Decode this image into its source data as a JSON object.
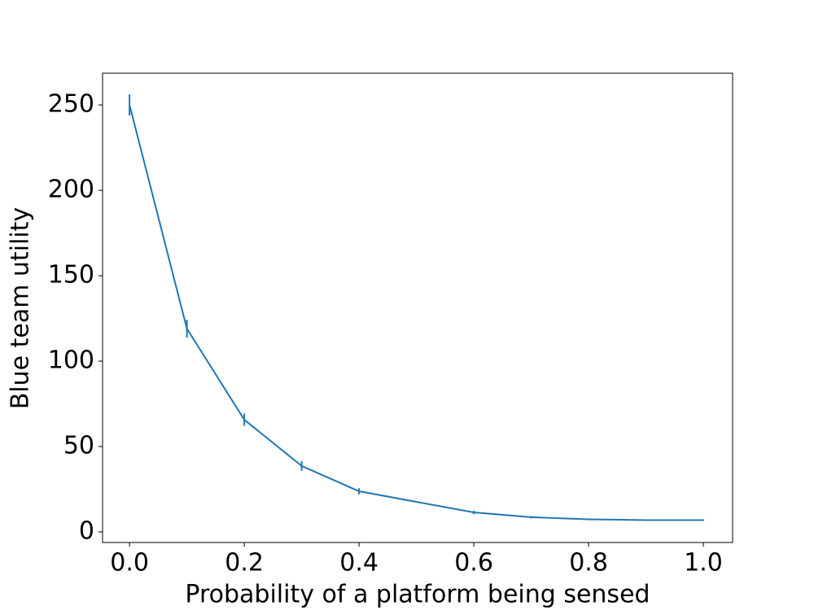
{
  "chart_data": {
    "type": "line",
    "xlabel": "Probability of a platform being sensed",
    "ylabel": "Blue team utility",
    "x": [
      0.0,
      0.1,
      0.2,
      0.3,
      0.4,
      0.6,
      0.7,
      0.8,
      0.9,
      1.0
    ],
    "series": [
      {
        "color": "#1f77b4",
        "values": [
          250,
          119,
          65.7,
          38.6,
          23.8,
          11.4,
          8.6,
          7.4,
          6.9,
          6.9
        ],
        "errors": [
          6.2,
          5.2,
          3.6,
          2.8,
          1.8,
          1.0,
          0.7,
          0.5,
          0.4,
          0.4
        ]
      }
    ],
    "xlim": [
      -0.047,
      1.051
    ],
    "ylim": [
      -6.2,
      268.6
    ],
    "xticks": [
      {
        "value": 0,
        "label": "0.0"
      },
      {
        "value": 0.2,
        "label": "0.2"
      },
      {
        "value": 0.4,
        "label": "0.4"
      },
      {
        "value": 0.6,
        "label": "0.6"
      },
      {
        "value": 0.8,
        "label": "0.8"
      },
      {
        "value": 1,
        "label": "1.0"
      }
    ],
    "yticks": [
      0,
      50,
      100,
      150,
      200,
      250
    ]
  }
}
